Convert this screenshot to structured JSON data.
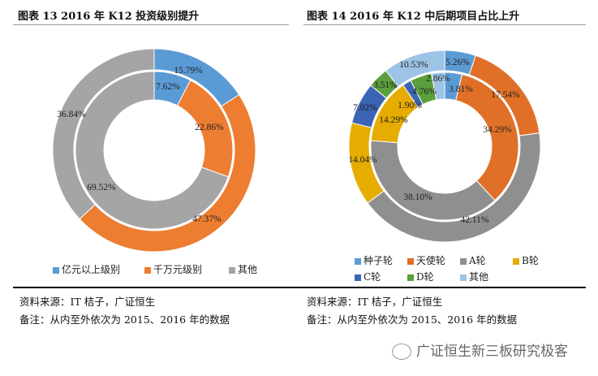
{
  "chart_data": [
    {
      "type": "pie",
      "variant": "double-donut",
      "title": "图表 13 2016 年 K12 投资级别提升",
      "categories": [
        "亿元以上级别",
        "千万元级别",
        "其他"
      ],
      "colors": [
        "#5b9bd5",
        "#ed7d31",
        "#a5a5a5"
      ],
      "series": [
        {
          "name": "2015",
          "ring": "inner",
          "values": [
            7.62,
            22.86,
            69.52
          ]
        },
        {
          "name": "2016",
          "ring": "outer",
          "values": [
            15.79,
            47.37,
            36.84
          ]
        }
      ],
      "legend": "bottom"
    },
    {
      "type": "pie",
      "variant": "double-donut",
      "title": "图表 14 2016 年 K12 中后期项目占比上升",
      "categories": [
        "种子轮",
        "天使轮",
        "A轮",
        "B轮",
        "C轮",
        "D轮",
        "其他"
      ],
      "colors": [
        "#5b9bd5",
        "#e07028",
        "#8f8f8f",
        "#e6ac00",
        "#3b64b4",
        "#5b9e3c",
        "#9dc3e6"
      ],
      "series": [
        {
          "name": "2015",
          "ring": "inner",
          "values": [
            3.81,
            34.29,
            38.1,
            14.29,
            1.9,
            4.76,
            2.86
          ]
        },
        {
          "name": "2016",
          "ring": "outer",
          "values": [
            5.26,
            17.54,
            42.11,
            14.04,
            7.02,
            3.51,
            10.53
          ]
        }
      ],
      "legend": "bottom"
    }
  ],
  "notes": {
    "left": {
      "source": "资料来源：IT 桔子，广证恒生",
      "remark": "备注：从内至外依次为 2015、2016 年的数据"
    },
    "right": {
      "source": "资料来源：IT 桔子，广证恒生",
      "remark": "备注：从内至外依次为 2015、2016 年的数据"
    }
  },
  "watermark": "广证恒生新三板研究极客"
}
